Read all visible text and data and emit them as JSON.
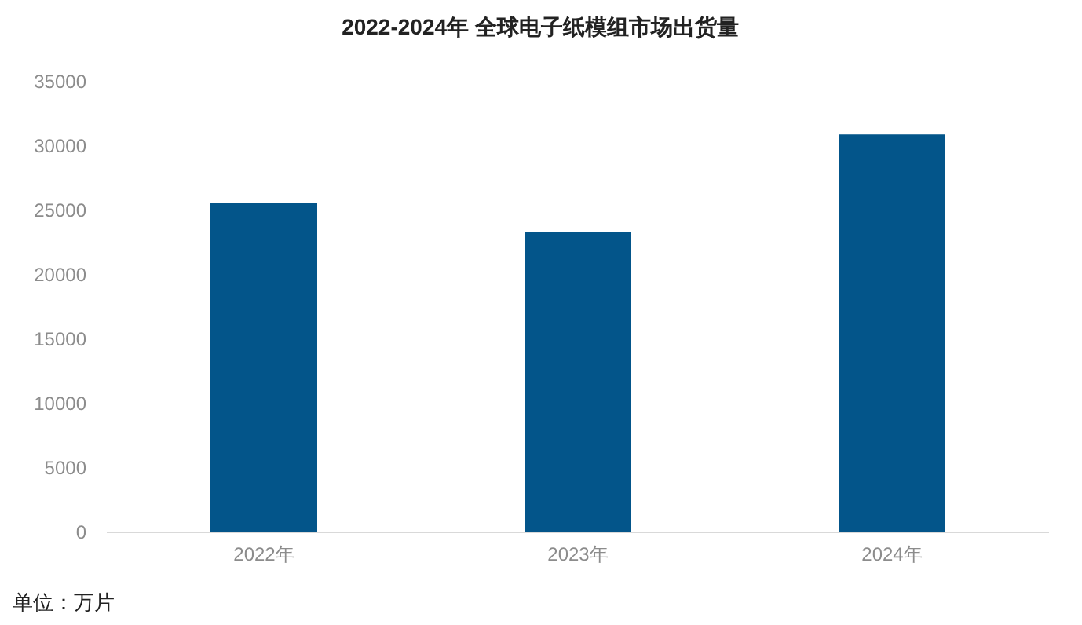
{
  "chart_data": {
    "type": "bar",
    "title": "2022-2024年 全球电子纸模组市场出货量",
    "categories": [
      "2022年",
      "2023年",
      "2024年"
    ],
    "values": [
      25600,
      23300,
      30900
    ],
    "color": "#03558a",
    "ylim": [
      0,
      35000
    ],
    "yticks": [
      0,
      5000,
      10000,
      15000,
      20000,
      25000,
      30000,
      35000
    ],
    "grid": false,
    "annotations": [
      "单位：万片"
    ]
  }
}
